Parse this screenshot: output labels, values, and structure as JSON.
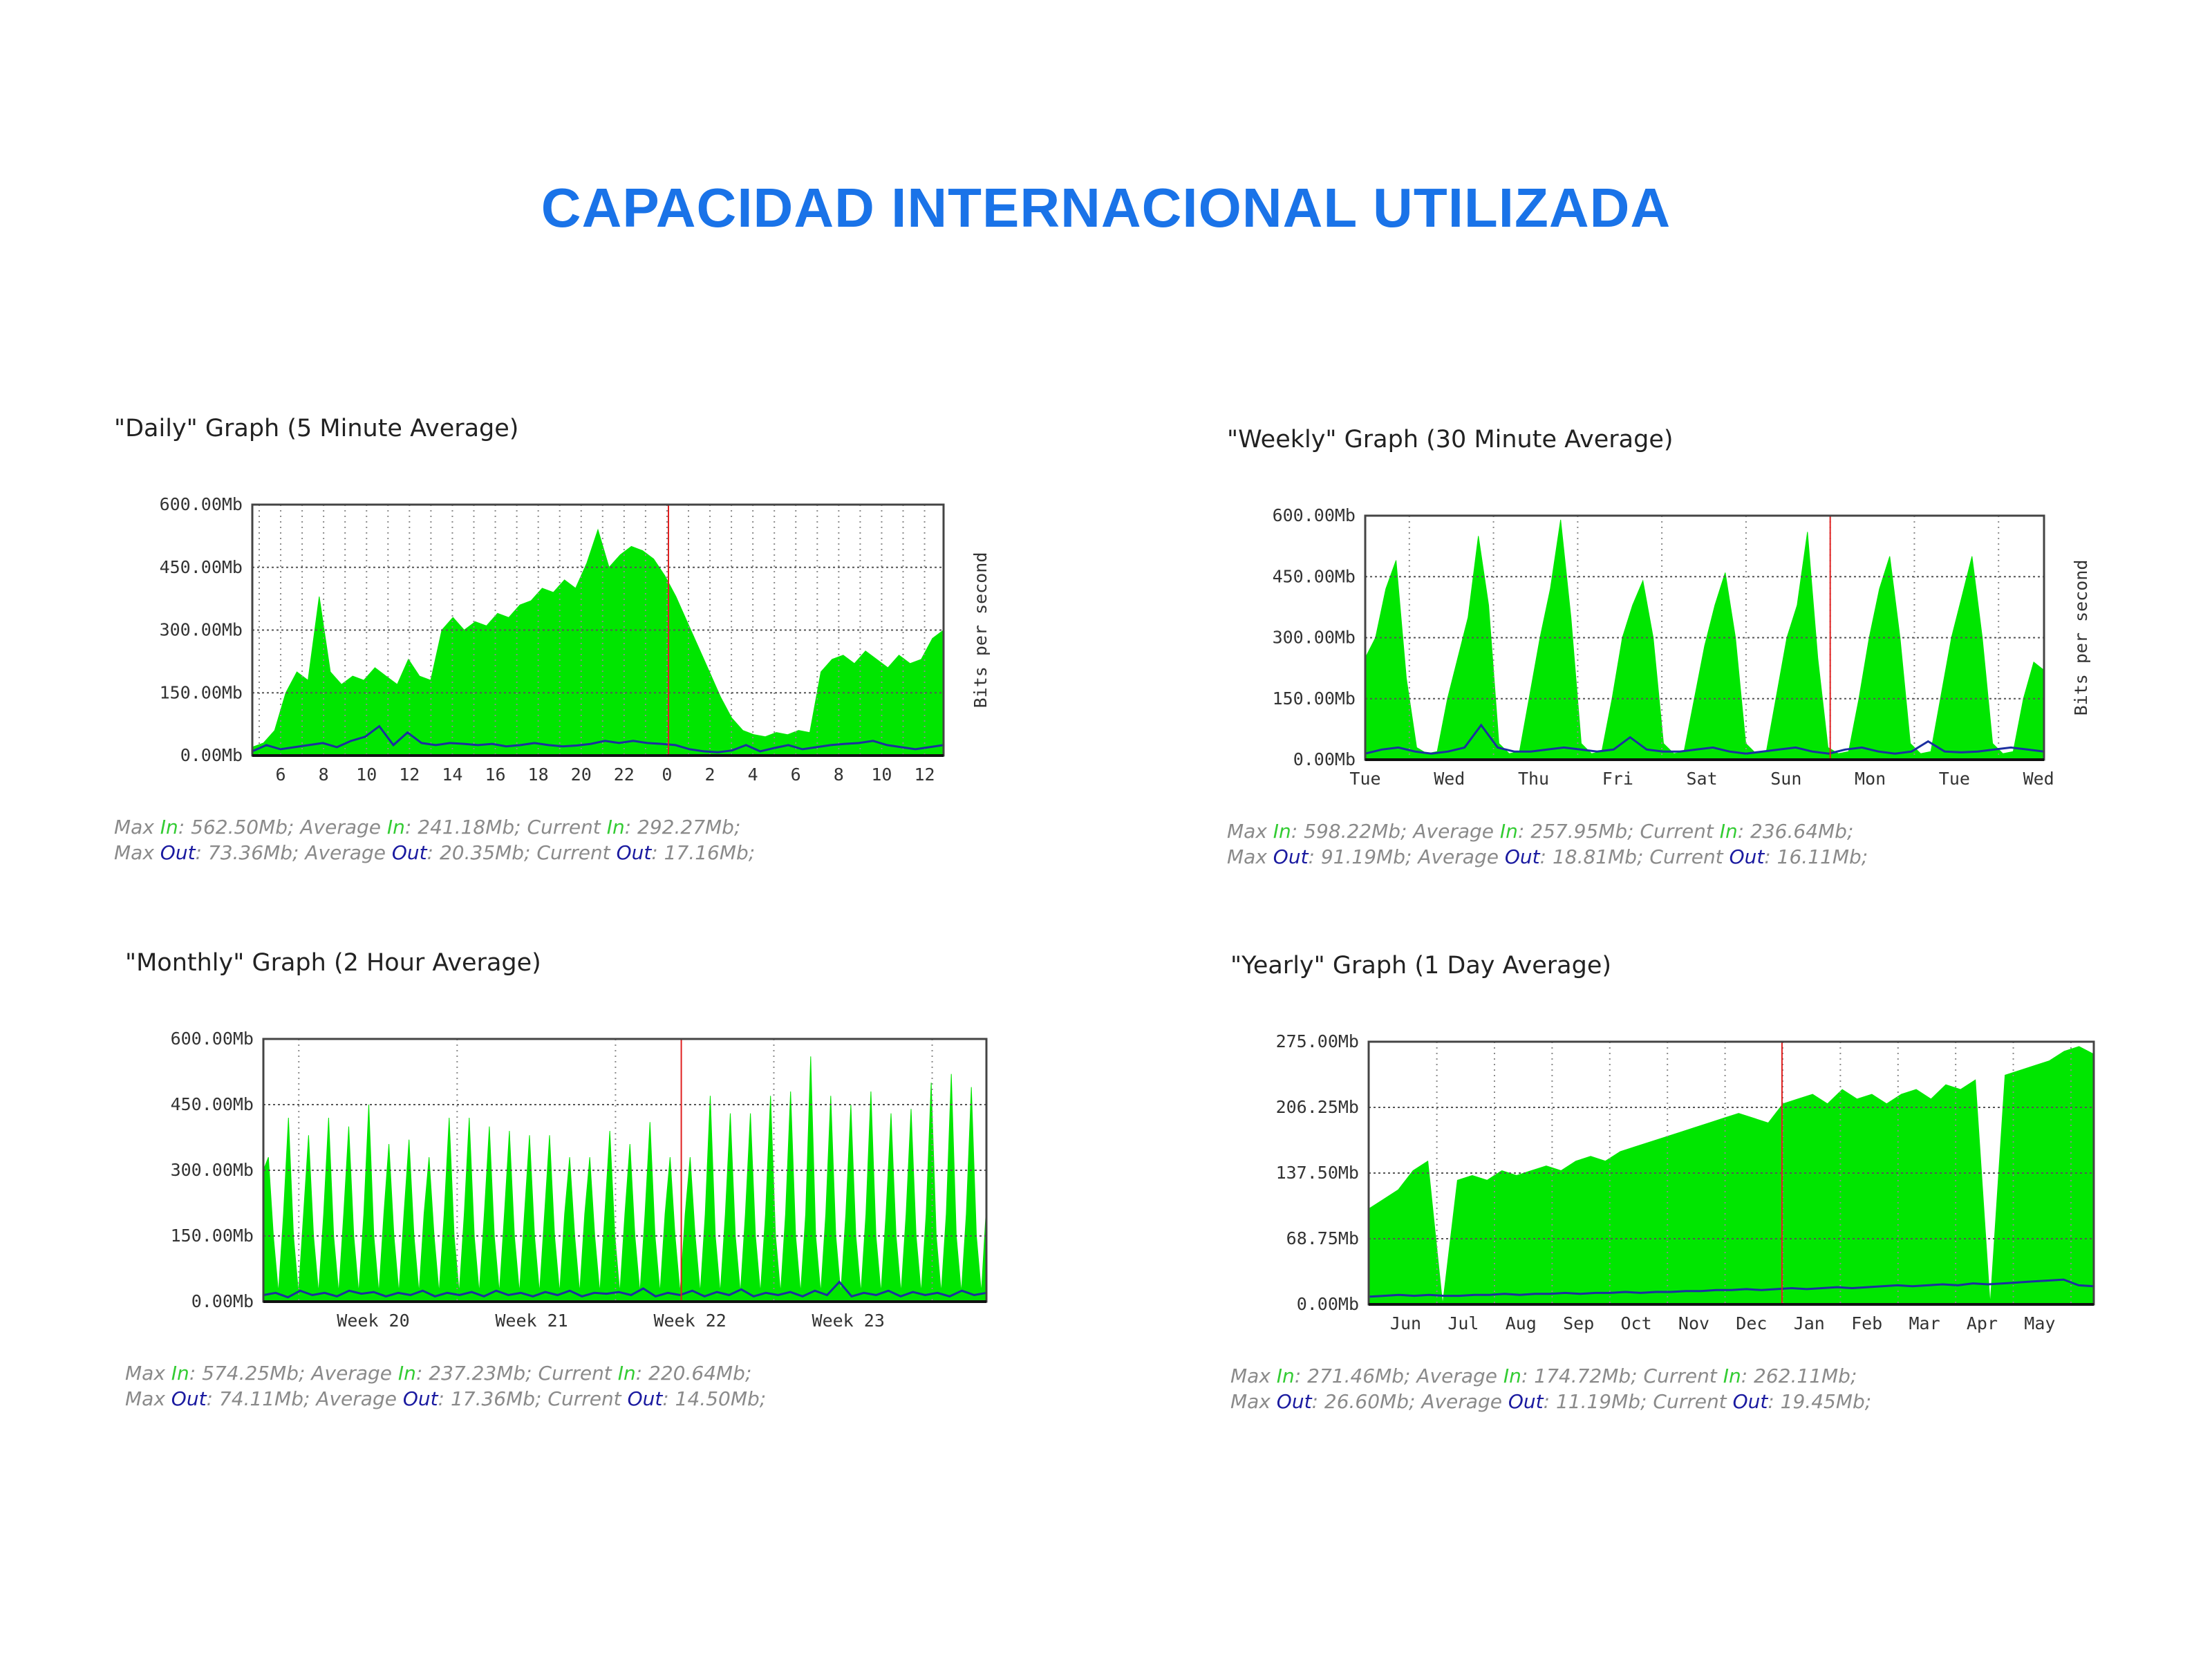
{
  "page": {
    "title": "CAPACIDAD INTERNACIONAL UTILIZADA"
  },
  "colors": {
    "in_fill": "#00e600",
    "out_line": "#1c2fa0",
    "now_line": "#e02020",
    "grid": "#8a8a8a",
    "frame": "#444444",
    "title": "#1a73e8"
  },
  "chart_data": [
    {
      "id": "daily",
      "type": "area",
      "title": "\"Daily\" Graph (5 Minute Average)",
      "ylabel": "Bits per second",
      "y_ticks": [
        "0.00Mb",
        "150.00Mb",
        "300.00Mb",
        "450.00Mb",
        "600.00Mb"
      ],
      "ylim": [
        0,
        600
      ],
      "x_ticks": [
        "6",
        "8",
        "10",
        "12",
        "14",
        "16",
        "18",
        "20",
        "22",
        "0",
        "2",
        "4",
        "6",
        "8",
        "10",
        "12"
      ],
      "current_time_marker": "0",
      "grid": true,
      "series": [
        {
          "name": "In",
          "values": [
            20,
            30,
            60,
            150,
            200,
            180,
            380,
            200,
            170,
            190,
            180,
            210,
            190,
            170,
            230,
            190,
            180,
            300,
            330,
            300,
            320,
            310,
            340,
            330,
            360,
            370,
            400,
            390,
            420,
            400,
            460,
            540,
            450,
            480,
            500,
            490,
            470,
            430,
            380,
            320,
            260,
            200,
            140,
            90,
            60,
            50,
            45,
            55,
            50,
            60,
            55,
            200,
            230,
            240,
            220,
            250,
            230,
            210,
            240,
            220,
            230,
            280,
            300
          ]
        },
        {
          "name": "Out",
          "values": [
            10,
            25,
            15,
            20,
            25,
            30,
            20,
            35,
            45,
            70,
            25,
            55,
            30,
            25,
            30,
            28,
            25,
            28,
            22,
            25,
            30,
            25,
            22,
            24,
            28,
            35,
            30,
            35,
            30,
            28,
            25,
            15,
            10,
            8,
            12,
            25,
            10,
            18,
            25,
            15,
            20,
            25,
            28,
            30,
            35,
            25,
            20,
            15,
            20,
            25
          ]
        }
      ],
      "stats": {
        "in": [
          {
            "label": "Max",
            "value": "562.50Mb"
          },
          {
            "label": "Average",
            "value": "241.18Mb"
          },
          {
            "label": "Current",
            "value": "292.27Mb"
          }
        ],
        "out": [
          {
            "label": "Max",
            "value": "73.36Mb"
          },
          {
            "label": "Average",
            "value": "20.35Mb"
          },
          {
            "label": "Current",
            "value": "17.16Mb"
          }
        ],
        "in_word": "In",
        "out_word": "Out"
      }
    },
    {
      "id": "weekly",
      "type": "area",
      "title": "\"Weekly\" Graph (30 Minute Average)",
      "ylabel": "Bits per second",
      "y_ticks": [
        "0.00Mb",
        "150.00Mb",
        "300.00Mb",
        "450.00Mb",
        "600.00Mb"
      ],
      "ylim": [
        0,
        600
      ],
      "x_ticks": [
        "Tue",
        "Wed",
        "Thu",
        "Fri",
        "Sat",
        "Sun",
        "Mon",
        "Tue",
        "Wed"
      ],
      "current_time_marker": "Mon",
      "grid": true,
      "series": [
        {
          "name": "In",
          "values": [
            250,
            300,
            420,
            490,
            200,
            30,
            15,
            20,
            150,
            250,
            350,
            550,
            380,
            40,
            15,
            20,
            160,
            300,
            420,
            590,
            350,
            40,
            15,
            20,
            150,
            300,
            380,
            440,
            300,
            40,
            15,
            20,
            150,
            280,
            380,
            460,
            300,
            40,
            15,
            20,
            160,
            300,
            380,
            560,
            250,
            30,
            15,
            20,
            150,
            300,
            420,
            500,
            300,
            40,
            15,
            20,
            160,
            300,
            400,
            500,
            300,
            40,
            15,
            20,
            150,
            240,
            220
          ]
        },
        {
          "name": "Out",
          "values": [
            15,
            25,
            30,
            20,
            15,
            20,
            30,
            85,
            30,
            20,
            20,
            25,
            30,
            25,
            20,
            25,
            55,
            25,
            20,
            20,
            25,
            30,
            20,
            15,
            20,
            25,
            30,
            20,
            15,
            25,
            30,
            20,
            15,
            20,
            45,
            20,
            18,
            20,
            25,
            30,
            25,
            20
          ]
        }
      ],
      "stats": {
        "in": [
          {
            "label": "Max",
            "value": "598.22Mb"
          },
          {
            "label": "Average",
            "value": "257.95Mb"
          },
          {
            "label": "Current",
            "value": "236.64Mb"
          }
        ],
        "out": [
          {
            "label": "Max",
            "value": "91.19Mb"
          },
          {
            "label": "Average",
            "value": "18.81Mb"
          },
          {
            "label": "Current",
            "value": "16.11Mb"
          }
        ],
        "in_word": "In",
        "out_word": "Out"
      }
    },
    {
      "id": "monthly",
      "type": "area",
      "title": "\"Monthly\" Graph (2 Hour Average)",
      "y_ticks": [
        "0.00Mb",
        "150.00Mb",
        "300.00Mb",
        "450.00Mb",
        "600.00Mb"
      ],
      "ylim": [
        0,
        600
      ],
      "x_ticks": [
        "Week 20",
        "Week 21",
        "Week 22",
        "Week 23"
      ],
      "grid": true,
      "series": [
        {
          "name": "In",
          "values": [
            300,
            330,
            150,
            20,
            200,
            420,
            150,
            20,
            200,
            380,
            150,
            20,
            200,
            420,
            150,
            20,
            200,
            400,
            150,
            20,
            200,
            450,
            150,
            20,
            200,
            360,
            150,
            20,
            200,
            370,
            150,
            20,
            200,
            330,
            150,
            20,
            200,
            420,
            150,
            20,
            200,
            420,
            150,
            20,
            200,
            400,
            150,
            20,
            200,
            390,
            150,
            20,
            200,
            380,
            150,
            20,
            200,
            380,
            150,
            20,
            200,
            330,
            150,
            20,
            200,
            330,
            150,
            20,
            200,
            390,
            150,
            20,
            200,
            360,
            150,
            20,
            200,
            410,
            150,
            20,
            200,
            330,
            150,
            20,
            200,
            330,
            150,
            20,
            200,
            470,
            150,
            20,
            200,
            430,
            150,
            20,
            200,
            430,
            150,
            20,
            200,
            470,
            150,
            20,
            200,
            480,
            150,
            20,
            200,
            560,
            150,
            20,
            200,
            470,
            150,
            20,
            200,
            450,
            150,
            20,
            200,
            480,
            150,
            20,
            200,
            430,
            150,
            20,
            200,
            440,
            150,
            20,
            200,
            500,
            150,
            20,
            200,
            520,
            150,
            20,
            200,
            490,
            150,
            20,
            220
          ]
        },
        {
          "name": "Out",
          "values": [
            15,
            20,
            10,
            25,
            15,
            20,
            12,
            25,
            18,
            22,
            12,
            20,
            15,
            25,
            12,
            20,
            15,
            22,
            12,
            25,
            15,
            20,
            12,
            22,
            15,
            25,
            12,
            20,
            18,
            22,
            15,
            30,
            12,
            20,
            15,
            25,
            12,
            22,
            15,
            28,
            12,
            20,
            15,
            22,
            12,
            25,
            15,
            45,
            12,
            20,
            15,
            25,
            12,
            22,
            15,
            20,
            12,
            25,
            15,
            20
          ]
        }
      ],
      "stats": {
        "in": [
          {
            "label": "Max",
            "value": "574.25Mb"
          },
          {
            "label": "Average",
            "value": "237.23Mb"
          },
          {
            "label": "Current",
            "value": "220.64Mb"
          }
        ],
        "out": [
          {
            "label": "Max",
            "value": "74.11Mb"
          },
          {
            "label": "Average",
            "value": "17.36Mb"
          },
          {
            "label": "Current",
            "value": "14.50Mb"
          }
        ],
        "in_word": "In",
        "out_word": "Out"
      }
    },
    {
      "id": "yearly",
      "type": "area",
      "title": "\"Yearly\" Graph (1 Day Average)",
      "y_ticks": [
        "0.00Mb",
        "68.75Mb",
        "137.50Mb",
        "206.25Mb",
        "275.00Mb"
      ],
      "ylim": [
        0,
        275
      ],
      "x_ticks": [
        "Jun",
        "Jul",
        "Aug",
        "Sep",
        "Oct",
        "Nov",
        "Dec",
        "Jan",
        "Feb",
        "Mar",
        "Apr",
        "May"
      ],
      "grid": true,
      "series": [
        {
          "name": "In",
          "values": [
            100,
            110,
            120,
            140,
            150,
            0,
            130,
            135,
            130,
            140,
            135,
            140,
            145,
            140,
            150,
            155,
            150,
            160,
            165,
            170,
            175,
            180,
            185,
            190,
            195,
            200,
            195,
            190,
            210,
            215,
            220,
            210,
            225,
            215,
            220,
            210,
            220,
            225,
            215,
            230,
            225,
            235,
            0,
            240,
            245,
            250,
            255,
            265,
            270,
            262
          ]
        },
        {
          "name": "Out",
          "values": [
            8,
            9,
            10,
            9,
            10,
            9,
            9,
            10,
            10,
            11,
            10,
            11,
            11,
            12,
            11,
            12,
            12,
            13,
            12,
            13,
            13,
            14,
            14,
            15,
            15,
            16,
            15,
            16,
            17,
            16,
            17,
            18,
            17,
            18,
            19,
            20,
            19,
            20,
            21,
            20,
            22,
            21,
            22,
            23,
            24,
            25,
            26,
            20,
            19
          ]
        }
      ],
      "stats": {
        "in": [
          {
            "label": "Max",
            "value": "271.46Mb"
          },
          {
            "label": "Average",
            "value": "174.72Mb"
          },
          {
            "label": "Current",
            "value": "262.11Mb"
          }
        ],
        "out": [
          {
            "label": "Max",
            "value": "26.60Mb"
          },
          {
            "label": "Average",
            "value": "11.19Mb"
          },
          {
            "label": "Current",
            "value": "19.45Mb"
          }
        ],
        "in_word": "In",
        "out_word": "Out"
      }
    }
  ]
}
